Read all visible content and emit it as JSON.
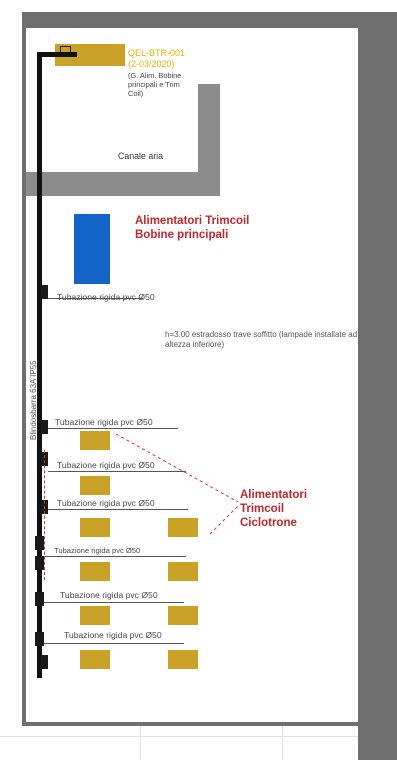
{
  "equipment_tag": {
    "code": "QEL-BTR-001",
    "date": "(2-03/2020)",
    "description": "(G. Alim. Bobine principali e Trim Coil)"
  },
  "duct": {
    "label": "Canale aria"
  },
  "main_coil_supplies": {
    "label": "Alimentatori Trimcoil Bobine principali"
  },
  "ceiling_note": {
    "text": "h=3.00 estradosso trave soffitto (lampade installate ad altezza inferiore)"
  },
  "vertical_trunk": {
    "label": "Blindosbarra 63A IP55"
  },
  "cyclotron_supplies": {
    "label": "Alimentatori Trimcoil Ciclotrone"
  },
  "pipes": [
    "Tubazione rigida pvc Ø50",
    "Tubazione rigida pvc Ø50",
    "Tubazione rigida pvc Ø50",
    "Tubazione rigida pvc Ø50",
    "Tubazione rigida pvc Ø50",
    "Tubazione rigida pvc Ø50",
    "Tubazione rigida pvc Ø50"
  ],
  "colors": {
    "frame": "#6f6f6f",
    "supply_unit": "#c9a227",
    "main_supply": "#1463c6",
    "highlight_text": "#c0272d",
    "tag_text": "#e6b400"
  }
}
